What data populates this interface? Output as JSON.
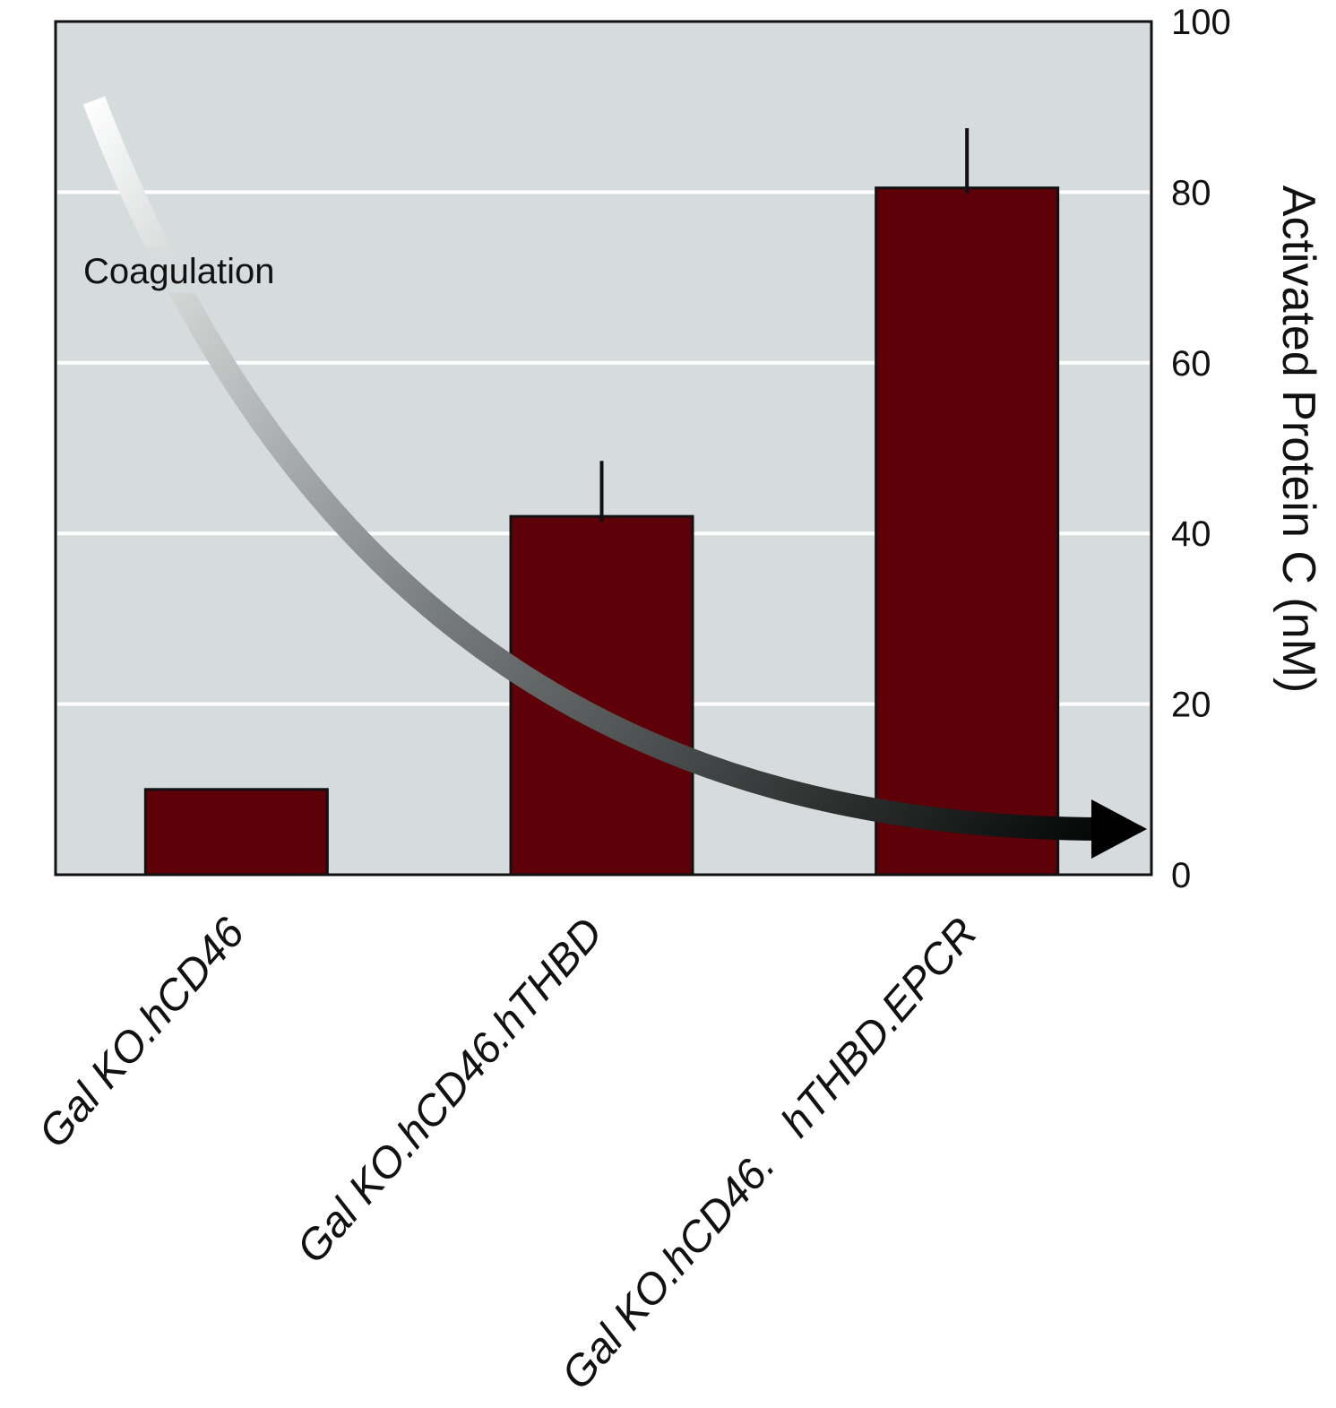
{
  "chart_data": {
    "type": "bar",
    "categories": [
      "Gal KO.hCD46",
      "Gal KO.hCD46.hTHBD",
      "Gal KO.hCD46.   hTHBD.EPCR"
    ],
    "values": [
      10,
      42,
      80.5
    ],
    "error_upper": [
      null,
      48.5,
      87.5
    ],
    "title": "",
    "xlabel": "",
    "ylabel": "Activated Protein C (nM)",
    "ylim": [
      0,
      100
    ],
    "yticks": [
      0,
      20,
      40,
      60,
      80,
      100
    ],
    "y_axis_side": "right",
    "grid": true,
    "legend": "none",
    "annotation": {
      "text": "Coagulation",
      "shape": "curved gradient arrow from top-left descending to bottom-right",
      "gradient_from": "#ffffff",
      "gradient_to": "#000000"
    },
    "colors": {
      "bar": "#5e0007",
      "plot_background": "#d6dcdd",
      "gridline": "#ffffff"
    }
  }
}
